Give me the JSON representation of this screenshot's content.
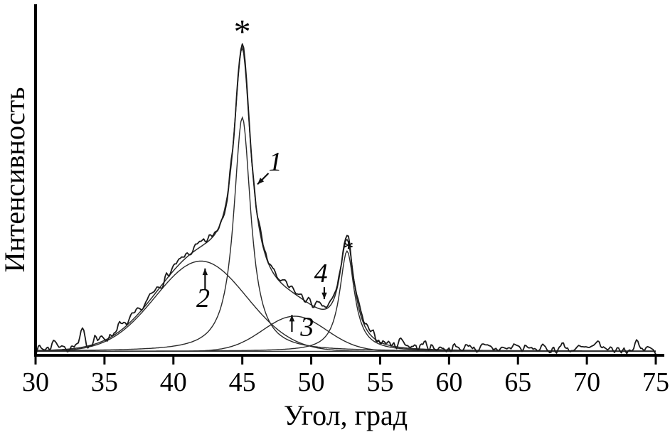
{
  "chart_data": {
    "type": "line",
    "title": "",
    "xlabel": "Угол, град",
    "ylabel": "Интенсивность",
    "xlim": [
      30,
      75
    ],
    "ylim_fraction": [
      0,
      1
    ],
    "x_ticks": [
      30,
      35,
      40,
      45,
      50,
      55,
      60,
      65,
      70,
      75
    ],
    "y_ticks": [],
    "grid": false,
    "legend": "none",
    "baseline": 0.012,
    "series": [
      {
        "name": "experimental",
        "role": "measured-diffractogram",
        "style": "noisy",
        "color": "#141414"
      },
      {
        "name": "fit-sum",
        "role": "fit-envelope",
        "style": "smooth",
        "color": "#2a2a2a"
      },
      {
        "name": "peak-1",
        "label": "1",
        "shape": "lorentzian",
        "center": 45.0,
        "height": 0.7,
        "hwhm": 0.75,
        "starred": true
      },
      {
        "name": "peak-2",
        "label": "2",
        "shape": "gaussian",
        "center": 42.0,
        "height": 0.27,
        "sigma": 3.3,
        "starred": false
      },
      {
        "name": "peak-3",
        "label": "3",
        "shape": "gaussian",
        "center": 48.8,
        "height": 0.105,
        "sigma": 2.3,
        "starred": false
      },
      {
        "name": "peak-4",
        "label": "4",
        "shape": "lorentzian",
        "center": 52.6,
        "height": 0.3,
        "hwhm": 0.65,
        "starred": true
      }
    ],
    "noise": {
      "amplitude": 0.02,
      "offset": 0.006,
      "spikes": [
        {
          "x": 31.4,
          "h": 0.028,
          "w": 0.16
        },
        {
          "x": 33.4,
          "h": 0.04,
          "w": 0.14
        },
        {
          "x": 34.3,
          "h": 0.02,
          "w": 0.12
        },
        {
          "x": 36.0,
          "h": 0.015,
          "w": 0.15
        },
        {
          "x": 56.6,
          "h": 0.02,
          "w": 0.2
        },
        {
          "x": 58.3,
          "h": 0.014,
          "w": 0.14
        },
        {
          "x": 61.5,
          "h": 0.013,
          "w": 0.15
        },
        {
          "x": 64.8,
          "h": 0.016,
          "w": 0.14
        },
        {
          "x": 68.2,
          "h": 0.014,
          "w": 0.13
        },
        {
          "x": 70.9,
          "h": 0.02,
          "w": 0.14
        },
        {
          "x": 73.6,
          "h": 0.018,
          "w": 0.12
        }
      ]
    },
    "annotations": [
      {
        "id": "star-main",
        "kind": "text",
        "text": "*",
        "x": 45.0,
        "y": 0.935,
        "font": 48,
        "italic": false
      },
      {
        "id": "peak1-label",
        "kind": "text",
        "text": "1",
        "x": 47.4,
        "y": 0.553,
        "font": 38,
        "italic": true
      },
      {
        "id": "peak1-arrow",
        "kind": "arrow",
        "x1": 46.9,
        "y1": 0.545,
        "x2": 46.1,
        "y2": 0.512
      },
      {
        "id": "peak2-arrow",
        "kind": "arrow",
        "x1": 42.3,
        "y1": 0.196,
        "x2": 42.3,
        "y2": 0.26
      },
      {
        "id": "peak2-label",
        "kind": "text",
        "text": "2",
        "x": 42.15,
        "y": 0.145,
        "font": 38,
        "italic": true
      },
      {
        "id": "peak3-arrow",
        "kind": "arrow",
        "x1": 48.6,
        "y1": 0.07,
        "x2": 48.6,
        "y2": 0.121
      },
      {
        "id": "peak3-label",
        "kind": "text",
        "text": "3",
        "x": 49.7,
        "y": 0.058,
        "font": 38,
        "italic": true
      },
      {
        "id": "peak4-label",
        "kind": "text",
        "text": "4",
        "x": 50.7,
        "y": 0.219,
        "font": 38,
        "italic": true
      },
      {
        "id": "peak4-arrow",
        "kind": "arrow",
        "x1": 50.95,
        "y1": 0.204,
        "x2": 50.95,
        "y2": 0.168
      },
      {
        "id": "star-peak4",
        "kind": "text",
        "text": "*",
        "x": 52.7,
        "y": 0.3,
        "font": 30,
        "italic": false
      }
    ]
  },
  "colors": {
    "background": "#ffffff",
    "axis": "#000000",
    "curve": "#1a1a1a",
    "components": "#2b2b2b"
  }
}
